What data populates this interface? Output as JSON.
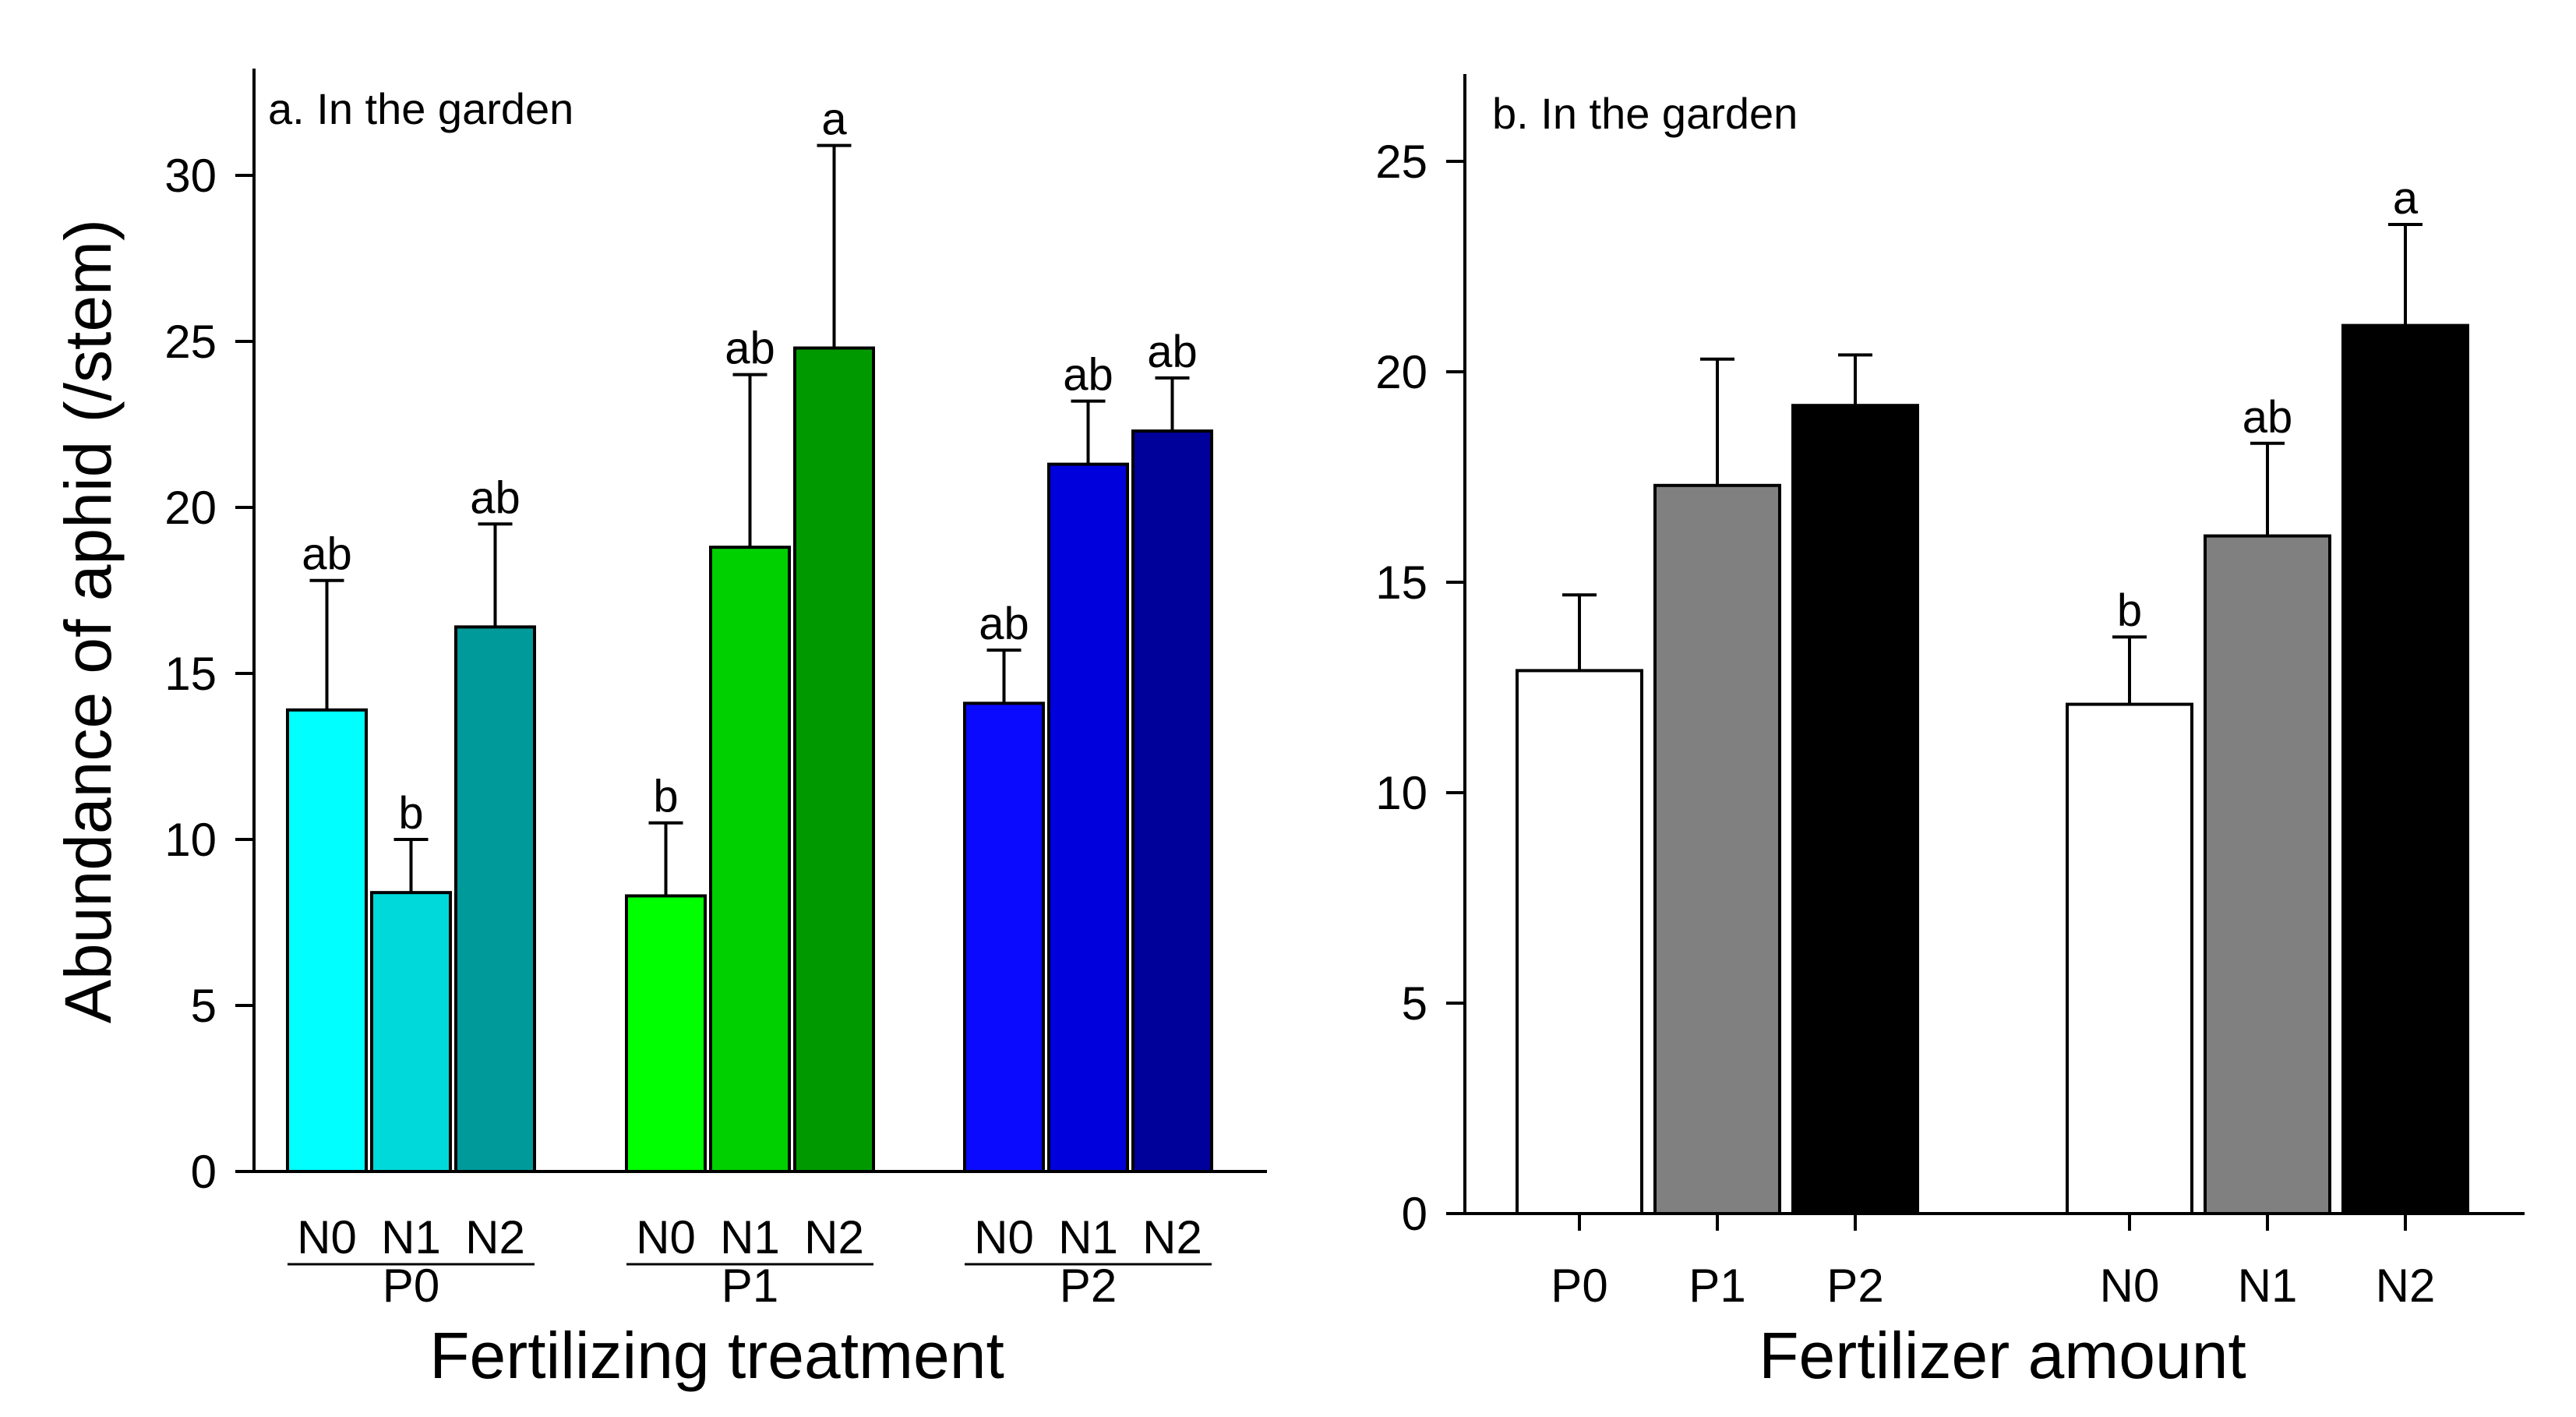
{
  "chart_data": [
    {
      "type": "bar",
      "title": "a. In the garden",
      "xlabel": "Fertilizing treatment",
      "ylabel": "Abundance of aphid (/stem)",
      "ylim": [
        0,
        33
      ],
      "yticks": [
        0,
        5,
        10,
        15,
        20,
        25,
        30
      ],
      "groups": [
        {
          "label": "P0",
          "bars": [
            {
              "category": "N0",
              "value": 13.9,
              "error": 3.9,
              "sig": "ab",
              "color": "#00FFFF"
            },
            {
              "category": "N1",
              "value": 8.4,
              "error": 1.6,
              "sig": "b",
              "color": "#00D9D9"
            },
            {
              "category": "N2",
              "value": 16.4,
              "error": 3.1,
              "sig": "ab",
              "color": "#009A9A"
            }
          ]
        },
        {
          "label": "P1",
          "bars": [
            {
              "category": "N0",
              "value": 8.3,
              "error": 2.2,
              "sig": "b",
              "color": "#00FF00"
            },
            {
              "category": "N1",
              "value": 18.8,
              "error": 5.2,
              "sig": "ab",
              "color": "#00D000"
            },
            {
              "category": "N2",
              "value": 24.8,
              "error": 6.1,
              "sig": "a",
              "color": "#009A00"
            }
          ]
        },
        {
          "label": "P2",
          "bars": [
            {
              "category": "N0",
              "value": 14.1,
              "error": 1.6,
              "sig": "ab",
              "color": "#0A0AFF"
            },
            {
              "category": "N1",
              "value": 21.3,
              "error": 1.9,
              "sig": "ab",
              "color": "#0000DD"
            },
            {
              "category": "N2",
              "value": 22.3,
              "error": 1.6,
              "sig": "ab",
              "color": "#00009A"
            }
          ]
        }
      ]
    },
    {
      "type": "bar",
      "title": "b. In the garden",
      "xlabel": "Fertilizer amount",
      "ylabel": "",
      "ylim": [
        0,
        27
      ],
      "yticks": [
        0,
        5,
        10,
        15,
        20,
        25
      ],
      "groups": [
        {
          "label": "",
          "bars": [
            {
              "category": "P0",
              "value": 12.9,
              "error": 1.8,
              "sig": "",
              "color": "#FFFFFF"
            },
            {
              "category": "P1",
              "value": 17.3,
              "error": 3.0,
              "sig": "",
              "color": "#808080"
            },
            {
              "category": "P2",
              "value": 19.2,
              "error": 1.2,
              "sig": "",
              "color": "#000000"
            }
          ]
        },
        {
          "label": "",
          "bars": [
            {
              "category": "N0",
              "value": 12.1,
              "error": 1.6,
              "sig": "b",
              "color": "#FFFFFF"
            },
            {
              "category": "N1",
              "value": 16.1,
              "error": 2.2,
              "sig": "ab",
              "color": "#808080"
            },
            {
              "category": "N2",
              "value": 21.1,
              "error": 2.4,
              "sig": "a",
              "color": "#000000"
            }
          ]
        }
      ]
    }
  ]
}
